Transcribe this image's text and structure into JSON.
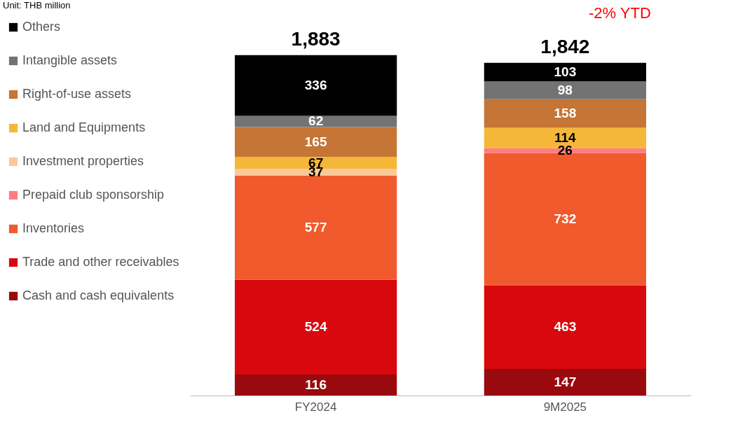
{
  "chart_data": {
    "type": "bar",
    "stacked": true,
    "data_labels": true,
    "legend": "left",
    "grid": false,
    "categories": [
      "FY2024",
      "9M2025"
    ],
    "series": [
      {
        "name": "Cash and cash equivalents",
        "color": "#990a0e",
        "values": [
          116,
          147
        ]
      },
      {
        "name": "Trade and other receivables",
        "color": "#d9080d",
        "values": [
          524,
          463
        ]
      },
      {
        "name": "Inventories",
        "color": "#f05a2c",
        "values": [
          577,
          732
        ]
      },
      {
        "name": "Prepaid club sponsorship",
        "color": "#ff7c80",
        "values": [
          null,
          26
        ]
      },
      {
        "name": "Investment properties",
        "color": "#fbc999",
        "values": [
          37,
          null
        ]
      },
      {
        "name": "Land and Equipments",
        "color": "#f5b738",
        "values": [
          67,
          114
        ]
      },
      {
        "name": "Right-of-use assets",
        "color": "#c57535",
        "values": [
          165,
          158
        ]
      },
      {
        "name": "Intangible assets",
        "color": "#737373",
        "values": [
          62,
          98
        ]
      },
      {
        "name": "Others",
        "color": "#000000",
        "values": [
          336,
          103
        ]
      }
    ],
    "totals": [
      "1,883",
      "1,842"
    ],
    "annotations": [
      "Unit: THB million",
      "-2% YTD"
    ]
  }
}
